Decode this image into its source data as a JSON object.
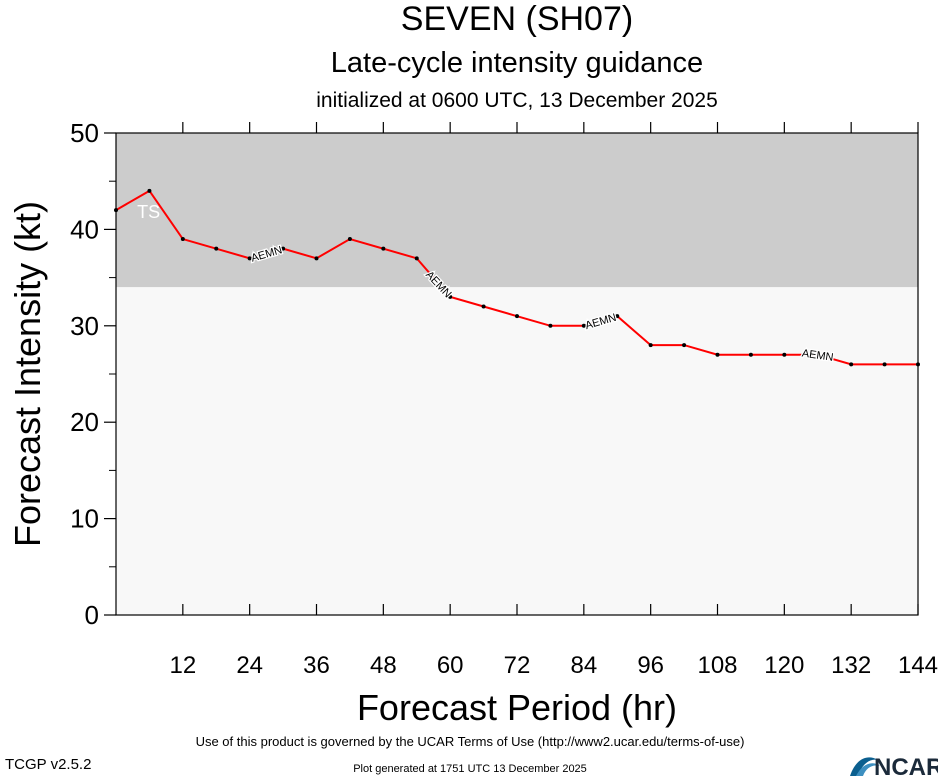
{
  "chart_data": {
    "type": "line",
    "title": "SEVEN (SH07)",
    "subtitle": "Late-cycle intensity guidance",
    "subtitle2": "initialized at 0600 UTC, 13 December 2025",
    "xlabel": "Forecast Period (hr)",
    "ylabel": "Forecast Intensity (kt)",
    "xlim": [
      0,
      144
    ],
    "ylim": [
      0,
      50
    ],
    "x_ticks": [
      12,
      24,
      36,
      48,
      60,
      72,
      84,
      96,
      108,
      120,
      132,
      144
    ],
    "y_ticks": [
      0,
      10,
      20,
      30,
      40,
      50
    ],
    "y_minor_ticks": [
      5,
      15,
      25,
      35,
      45
    ],
    "grid": false,
    "shaded_bands": [
      {
        "label": "TS",
        "from": 34,
        "to": 50,
        "color": "#cccccc"
      },
      {
        "label": "",
        "from": 0,
        "to": 34,
        "color": "#f8f8f8"
      }
    ],
    "series": [
      {
        "name": "AEMN",
        "color": "#ff0000",
        "x": [
          0,
          6,
          12,
          18,
          24,
          30,
          36,
          42,
          48,
          54,
          60,
          66,
          72,
          78,
          84,
          90,
          96,
          102,
          108,
          114,
          120,
          126,
          132,
          138,
          144
        ],
        "y": [
          42,
          44,
          39,
          38,
          37,
          38,
          37,
          39,
          38,
          37,
          33,
          32,
          31,
          30,
          30,
          31,
          28,
          28,
          27,
          27,
          27,
          27,
          26,
          26,
          26
        ],
        "label_positions": [
          27,
          58,
          87,
          126
        ]
      }
    ]
  },
  "footer": {
    "terms": "Use of this product is governed by the UCAR Terms of Use (http://www2.ucar.edu/terms-of-use)",
    "generated": "Plot generated at 1751 UTC   13 December 2025",
    "version": "TCGP v2.5.2",
    "logo_text": "NCAR"
  }
}
